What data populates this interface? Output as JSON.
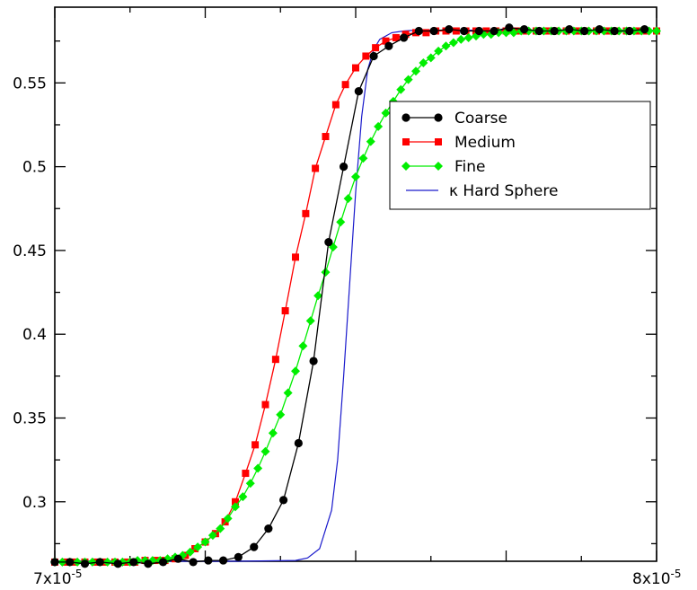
{
  "chart_data": {
    "type": "line",
    "title": "",
    "xlabel": "",
    "ylabel": "",
    "xlim": [
      7e-05,
      8e-05
    ],
    "ylim": [
      0.2645,
      0.5952
    ],
    "x_tick_labels": [
      "7x10",
      "8x10"
    ],
    "x_tick_exponent": "-5",
    "y_ticks": [
      0.3,
      0.35,
      0.4,
      0.45,
      0.5,
      0.55
    ],
    "y_tick_labels": [
      "0.3",
      "0.35",
      "0.4",
      "0.45",
      "0.5",
      "0.55"
    ],
    "grid": false,
    "legend_position": "top-right",
    "series": [
      {
        "name": "Coarse",
        "color": "#000000",
        "marker": "circle",
        "x": [
          7e-05,
          7.025e-05,
          7.05e-05,
          7.075e-05,
          7.105e-05,
          7.131e-05,
          7.155e-05,
          7.18e-05,
          7.205e-05,
          7.23e-05,
          7.255e-05,
          7.28e-05,
          7.305e-05,
          7.331e-05,
          7.355e-05,
          7.38e-05,
          7.405e-05,
          7.43e-05,
          7.455e-05,
          7.48e-05,
          7.505e-05,
          7.53e-05,
          7.555e-05,
          7.58e-05,
          7.605e-05,
          7.63e-05,
          7.655e-05,
          7.68e-05,
          7.705e-05,
          7.73e-05,
          7.755e-05,
          7.78e-05,
          7.805e-05,
          7.83e-05,
          7.855e-05,
          7.88e-05,
          7.905e-05,
          7.93e-05,
          7.955e-05,
          7.98e-05
        ],
        "y": [
          0.264,
          0.264,
          0.263,
          0.264,
          0.263,
          0.264,
          0.263,
          0.264,
          0.266,
          0.264,
          0.265,
          0.265,
          0.267,
          0.273,
          0.284,
          0.301,
          0.335,
          0.384,
          0.455,
          0.5,
          0.545,
          0.566,
          0.572,
          0.577,
          0.581,
          0.581,
          0.582,
          0.581,
          0.581,
          0.581,
          0.583,
          0.582,
          0.581,
          0.581,
          0.582,
          0.581,
          0.582,
          0.581,
          0.581,
          0.582
        ]
      },
      {
        "name": "Medium",
        "color": "#ff0000",
        "marker": "square",
        "x": [
          7e-05,
          7.017e-05,
          7.033e-05,
          7.05e-05,
          7.067e-05,
          7.083e-05,
          7.1e-05,
          7.117e-05,
          7.133e-05,
          7.15e-05,
          7.167e-05,
          7.183e-05,
          7.2e-05,
          7.217e-05,
          7.233e-05,
          7.25e-05,
          7.267e-05,
          7.283e-05,
          7.3e-05,
          7.317e-05,
          7.333e-05,
          7.35e-05,
          7.367e-05,
          7.383e-05,
          7.4e-05,
          7.417e-05,
          7.433e-05,
          7.45e-05,
          7.467e-05,
          7.483e-05,
          7.5e-05,
          7.517e-05,
          7.533e-05,
          7.55e-05,
          7.567e-05,
          7.583e-05,
          7.6e-05,
          7.617e-05,
          7.633e-05,
          7.65e-05,
          7.667e-05,
          7.683e-05,
          7.7e-05,
          7.717e-05,
          7.733e-05,
          7.75e-05,
          7.767e-05,
          7.783e-05,
          7.8e-05,
          7.817e-05,
          7.833e-05,
          7.85e-05,
          7.867e-05,
          7.883e-05,
          7.9e-05,
          7.917e-05,
          7.933e-05,
          7.95e-05,
          7.967e-05,
          7.983e-05,
          8e-05
        ],
        "y": [
          0.264,
          0.264,
          0.264,
          0.264,
          0.264,
          0.264,
          0.264,
          0.264,
          0.264,
          0.265,
          0.265,
          0.265,
          0.266,
          0.268,
          0.272,
          0.276,
          0.281,
          0.288,
          0.3,
          0.317,
          0.334,
          0.358,
          0.385,
          0.414,
          0.446,
          0.472,
          0.499,
          0.518,
          0.537,
          0.549,
          0.559,
          0.566,
          0.571,
          0.575,
          0.577,
          0.579,
          0.58,
          0.58,
          0.581,
          0.581,
          0.581,
          0.581,
          0.581,
          0.581,
          0.581,
          0.581,
          0.581,
          0.581,
          0.581,
          0.581,
          0.581,
          0.581,
          0.581,
          0.581,
          0.581,
          0.581,
          0.581,
          0.581,
          0.581,
          0.581,
          0.581
        ]
      },
      {
        "name": "Fine",
        "color": "#00ee00",
        "marker": "diamond",
        "x": [
          7e-05,
          7.0125e-05,
          7.025e-05,
          7.0375e-05,
          7.05e-05,
          7.0625e-05,
          7.075e-05,
          7.0875e-05,
          7.1e-05,
          7.1125e-05,
          7.125e-05,
          7.1375e-05,
          7.15e-05,
          7.1625e-05,
          7.175e-05,
          7.1875e-05,
          7.2e-05,
          7.2125e-05,
          7.225e-05,
          7.2375e-05,
          7.25e-05,
          7.2625e-05,
          7.275e-05,
          7.2875e-05,
          7.3e-05,
          7.3125e-05,
          7.325e-05,
          7.3375e-05,
          7.35e-05,
          7.3625e-05,
          7.375e-05,
          7.3875e-05,
          7.4e-05,
          7.4125e-05,
          7.425e-05,
          7.4375e-05,
          7.45e-05,
          7.4625e-05,
          7.475e-05,
          7.4875e-05,
          7.5e-05,
          7.5125e-05,
          7.525e-05,
          7.5375e-05,
          7.55e-05,
          7.5625e-05,
          7.575e-05,
          7.5875e-05,
          7.6e-05,
          7.6125e-05,
          7.625e-05,
          7.6375e-05,
          7.65e-05,
          7.6625e-05,
          7.675e-05,
          7.6875e-05,
          7.7e-05,
          7.7125e-05,
          7.725e-05,
          7.7375e-05,
          7.75e-05,
          7.7625e-05,
          7.775e-05,
          7.7875e-05,
          7.8e-05,
          7.8125e-05,
          7.825e-05,
          7.8375e-05,
          7.85e-05,
          7.8625e-05,
          7.875e-05,
          7.8875e-05,
          7.9e-05,
          7.9125e-05,
          7.925e-05,
          7.9375e-05,
          7.95e-05,
          7.9625e-05,
          7.975e-05,
          7.9875e-05,
          8e-05
        ],
        "y": [
          0.264,
          0.264,
          0.264,
          0.264,
          0.264,
          0.264,
          0.264,
          0.264,
          0.264,
          0.264,
          0.264,
          0.265,
          0.265,
          0.265,
          0.265,
          0.266,
          0.267,
          0.268,
          0.27,
          0.273,
          0.276,
          0.28,
          0.284,
          0.29,
          0.297,
          0.303,
          0.311,
          0.32,
          0.33,
          0.341,
          0.352,
          0.365,
          0.378,
          0.393,
          0.408,
          0.423,
          0.437,
          0.452,
          0.467,
          0.481,
          0.494,
          0.505,
          0.515,
          0.524,
          0.532,
          0.539,
          0.546,
          0.552,
          0.557,
          0.562,
          0.565,
          0.569,
          0.572,
          0.574,
          0.576,
          0.577,
          0.578,
          0.579,
          0.579,
          0.58,
          0.58,
          0.58,
          0.581,
          0.581,
          0.581,
          0.581,
          0.581,
          0.581,
          0.581,
          0.581,
          0.581,
          0.581,
          0.581,
          0.581,
          0.581,
          0.581,
          0.581,
          0.581,
          0.581,
          0.581,
          0.581
        ]
      },
      {
        "name": "κ Hard Sphere",
        "color": "#1a1acc",
        "marker": "none",
        "x": [
          7e-05,
          7.3e-05,
          7.4e-05,
          7.42e-05,
          7.44e-05,
          7.46e-05,
          7.47e-05,
          7.48e-05,
          7.49e-05,
          7.5e-05,
          7.51e-05,
          7.52e-05,
          7.53e-05,
          7.54e-05,
          7.56e-05,
          7.58e-05,
          7.6e-05,
          7.7e-05,
          8e-05
        ],
        "y": [
          0.2645,
          0.2645,
          0.265,
          0.2665,
          0.272,
          0.295,
          0.325,
          0.375,
          0.43,
          0.485,
          0.53,
          0.558,
          0.57,
          0.576,
          0.58,
          0.581,
          0.5815,
          0.5815,
          0.5815
        ]
      }
    ]
  }
}
